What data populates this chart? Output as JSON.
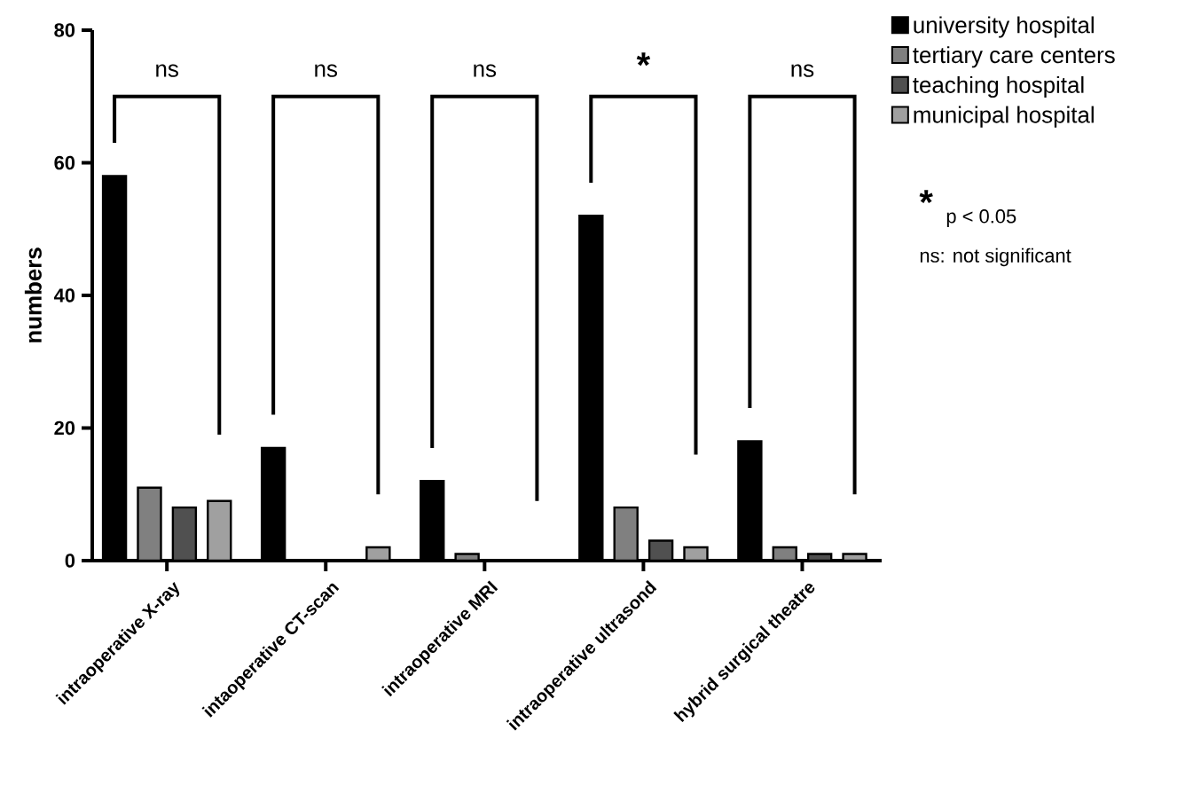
{
  "chart_data": {
    "type": "bar",
    "ylabel": "numbers",
    "categories": [
      "intraoperative X-ray",
      "intaoperative CT-scan",
      "intraoperative MRI",
      "intraoperative ultrasond",
      "hybrid surgical theatre"
    ],
    "series": [
      {
        "name": "university hospital",
        "color": "#000000",
        "values": [
          58,
          17,
          12,
          52,
          18
        ]
      },
      {
        "name": "tertiary care centers",
        "color": "#808080",
        "values": [
          11,
          0,
          1,
          8,
          2
        ]
      },
      {
        "name": "teaching hospital",
        "color": "#505050",
        "values": [
          8,
          0,
          0,
          3,
          1
        ]
      },
      {
        "name": "municipal hospital",
        "color": "#a0a0a0",
        "values": [
          9,
          2,
          0,
          2,
          1
        ]
      }
    ],
    "ylim": [
      0,
      80
    ],
    "yticks": [
      0,
      20,
      40,
      60,
      80
    ],
    "legend": "top right",
    "annotations": [
      "ns",
      "ns",
      "ns",
      "*",
      "ns",
      "*",
      "p < 0.05",
      "ns: not significant"
    ]
  }
}
